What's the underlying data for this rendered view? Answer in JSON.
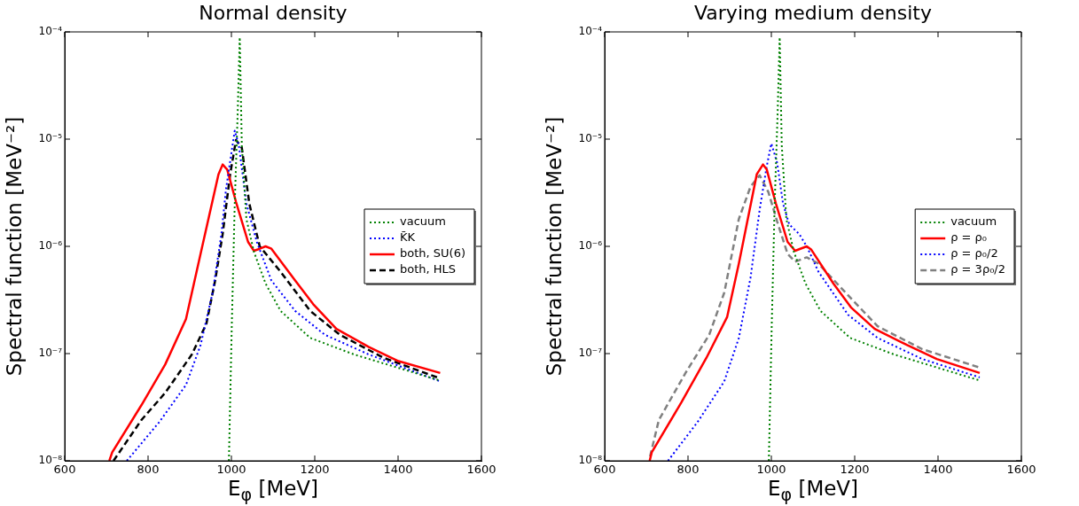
{
  "chart_data": [
    {
      "type": "line",
      "title": "Normal density",
      "xlabel": "E$_{φ}$ [MeV]",
      "ylabel": "Spectral function [MeV⁻²]",
      "log": "y",
      "grid": false,
      "legend": "right",
      "marker": "none",
      "xlim": [
        600,
        1600
      ],
      "xticks": [
        600,
        800,
        1000,
        1200,
        1400,
        1600
      ],
      "ylim": [
        1e-08,
        0.0001
      ],
      "yticks": [
        {
          "value": 1e-08,
          "label": "10⁻⁸"
        },
        {
          "value": 1e-07,
          "label": "10⁻⁷"
        },
        {
          "value": 1e-06,
          "label": "10⁻⁶"
        },
        {
          "value": 1e-05,
          "label": "10⁻⁵"
        },
        {
          "value": 0.0001,
          "label": "10⁻⁴"
        }
      ],
      "series": [
        {
          "name": "vacuum",
          "color": "#008000",
          "line_style": "dotted",
          "x": [
            994,
            1001,
            1008,
            1015,
            1020,
            1025,
            1036,
            1054,
            1082,
            1118,
            1189,
            1295,
            1501
          ],
          "values": [
            1e-08,
            1.9e-07,
            2.5e-06,
            1.7e-05,
            8.9e-05,
            8.7e-06,
            1.8e-06,
            8.9e-07,
            4.5e-07,
            2.5e-07,
            1.4e-07,
            9.8e-08,
            5.6e-08
          ]
        },
        {
          "name": "K̄K",
          "color": "#0000ff",
          "line_style": "dotted",
          "x": [
            749,
            827,
            891,
            926,
            955,
            976,
            987,
            1008,
            1018,
            1036,
            1061,
            1096,
            1153,
            1224,
            1330,
            1501
          ],
          "values": [
            1e-08,
            2.3e-08,
            5.1e-08,
            1.2e-07,
            3.7e-07,
            1.3e-06,
            3.4e-06,
            1.2e-05,
            8.7e-06,
            2.5e-06,
            1.1e-06,
            4.8e-07,
            2.5e-07,
            1.5e-07,
            9.8e-08,
            5.5e-08
          ]
        },
        {
          "name": "both, SU(6)",
          "color": "#ff0000",
          "line_style": "solid",
          "x": [
            707,
            714,
            784,
            841,
            891,
            926,
            969,
            979,
            990,
            1011,
            1040,
            1054,
            1068,
            1082,
            1096,
            1153,
            1196,
            1252,
            1330,
            1401,
            1501
          ],
          "values": [
            1e-08,
            1.2e-08,
            3.3e-08,
            7.9e-08,
            2.1e-07,
            8.5e-07,
            4.7e-06,
            5.8e-06,
            5.2e-06,
            2.6e-06,
            1.1e-06,
            9.1e-07,
            9.5e-07,
            1e-06,
            9.5e-07,
            4.8e-07,
            2.9e-07,
            1.7e-07,
            1.15e-07,
            8.5e-08,
            6.6e-08
          ]
        },
        {
          "name": "both, HLS",
          "color": "#000000",
          "line_style": "dashed",
          "x": [
            717,
            784,
            841,
            905,
            940,
            961,
            979,
            997,
            1011,
            1025,
            1043,
            1068,
            1118,
            1189,
            1260,
            1366,
            1494
          ],
          "values": [
            1e-08,
            2.4e-08,
            4.3e-08,
            9.8e-08,
            1.9e-07,
            4.8e-07,
            1.3e-06,
            4.7e-06,
            9.8e-06,
            8.3e-06,
            2.5e-06,
            1e-06,
            5.8e-07,
            2.5e-07,
            1.5e-07,
            9.1e-08,
            6e-08
          ]
        }
      ]
    },
    {
      "type": "line",
      "title": "Varying medium density",
      "xlabel": "E$_{φ}$ [MeV]",
      "ylabel": "Spectral function [MeV⁻²]",
      "log": "y",
      "grid": false,
      "legend": "right",
      "marker": "none",
      "xlim": [
        600,
        1600
      ],
      "xticks": [
        600,
        800,
        1000,
        1200,
        1400,
        1600
      ],
      "ylim": [
        1e-08,
        0.0001
      ],
      "yticks": [
        {
          "value": 1e-08,
          "label": "10⁻⁸"
        },
        {
          "value": 1e-07,
          "label": "10⁻⁷"
        },
        {
          "value": 1e-06,
          "label": "10⁻⁶"
        },
        {
          "value": 1e-05,
          "label": "10⁻⁵"
        },
        {
          "value": 0.0001,
          "label": "10⁻⁴"
        }
      ],
      "series": [
        {
          "name": "vacuum",
          "color": "#008000",
          "line_style": "dotted",
          "x": [
            994,
            1001,
            1008,
            1015,
            1020,
            1025,
            1036,
            1054,
            1082,
            1118,
            1189,
            1295,
            1501
          ],
          "values": [
            1e-08,
            1.9e-07,
            2.5e-06,
            1.7e-05,
            8.9e-05,
            8.7e-06,
            1.8e-06,
            8.9e-07,
            4.5e-07,
            2.5e-07,
            1.4e-07,
            9.8e-08,
            5.6e-08
          ]
        },
        {
          "name": "ρ = ρ₀",
          "color": "#ff0000",
          "line_style": "solid",
          "x": [
            708,
            713,
            784,
            844,
            894,
            922,
            965,
            980,
            989,
            1011,
            1039,
            1057,
            1085,
            1096,
            1149,
            1191,
            1248,
            1326,
            1397,
            1500
          ],
          "values": [
            1e-08,
            1.2e-08,
            3.5e-08,
            9.1e-08,
            2.2e-07,
            6.9e-07,
            4.7e-06,
            5.8e-06,
            5.2e-06,
            2.5e-06,
            1.1e-06,
            9.1e-07,
            1e-06,
            9.3e-07,
            4.5e-07,
            2.7e-07,
            1.7e-07,
            1.2e-07,
            8.9e-08,
            6.6e-08
          ]
        },
        {
          "name": "ρ = ρ₀/2",
          "color": "#0000ff",
          "line_style": "dotted",
          "x": [
            752,
            823,
            887,
            922,
            950,
            972,
            989,
            1000,
            1014,
            1028,
            1043,
            1067,
            1085,
            1113,
            1184,
            1255,
            1362,
            1500
          ],
          "values": [
            1e-08,
            2.3e-08,
            5.5e-08,
            1.4e-07,
            5.1e-07,
            2.2e-06,
            5.6e-06,
            9.1e-06,
            6e-06,
            2.5e-06,
            1.6e-06,
            1.3e-06,
            1e-06,
            5.8e-07,
            2.3e-07,
            1.4e-07,
            8.9e-08,
            6e-08
          ]
        },
        {
          "name": "ρ = 3ρ₀/2",
          "color": "#808080",
          "line_style": "dashed",
          "x": [
            709,
            730,
            794,
            851,
            887,
            922,
            950,
            972,
            993,
            1014,
            1039,
            1057,
            1085,
            1113,
            1184,
            1255,
            1362,
            1500
          ],
          "values": [
            1.1e-08,
            2.4e-08,
            6.6e-08,
            1.5e-07,
            3.7e-07,
            1.8e-06,
            3.6e-06,
            4.6e-06,
            3.2e-06,
            1.7e-06,
            8.5e-07,
            7.2e-07,
            7.9e-07,
            6.9e-07,
            3.5e-07,
            1.8e-07,
            1.1e-07,
            7.4e-08
          ]
        }
      ]
    }
  ]
}
